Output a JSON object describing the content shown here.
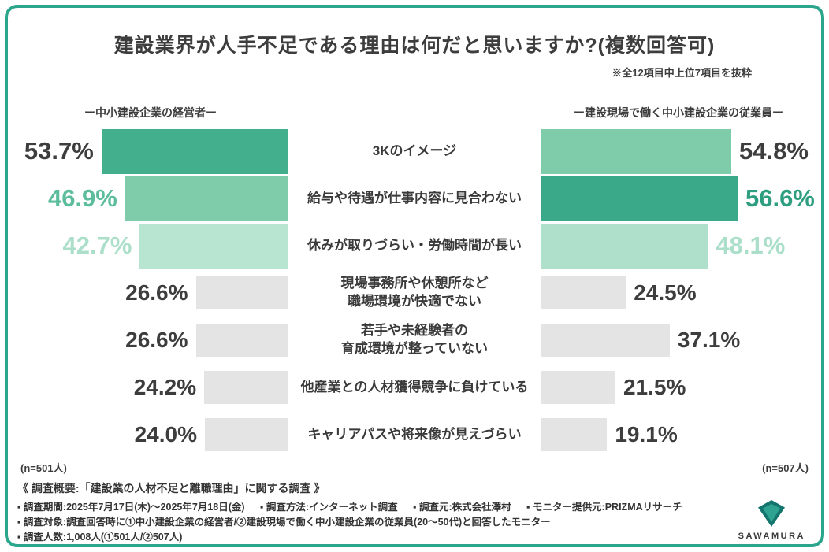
{
  "accent_colors": {
    "frame_border": "#2ba58b",
    "bar_dark_green": "#44af8d",
    "bar_medium_green": "#7fccab",
    "bar_light_green": "#b7e5d2",
    "bar_gray": "#e4e4e4"
  },
  "header": {
    "title": "建設業界が人手不足である理由は何だと思いますか?(複数回答可)",
    "note": "※全12項目中上位7項目を抜粋"
  },
  "group_headers": {
    "left": "ー中小建設企業の経営者ー",
    "right": "ー建設現場で働く中小建設企業の従業員ー"
  },
  "chart_data": {
    "type": "bar",
    "layout": "diverging horizontal bars; two mirrored groups around centered category labels; top 3 rows highlighted in greens, rest gray",
    "title": "建設業界が人手不足である理由は何だと思いますか?(複数回答可)",
    "note": "※全12項目中上位7項目を抜粋",
    "xlim": [
      0,
      60
    ],
    "categories": [
      "3Kのイメージ",
      "給与や待遇が仕事内容に見合わない",
      "休みが取りづらい・労働時間が長い",
      "現場事務所や休憩所など職場環境が快適でない",
      "若手や未経験者の育成環境が整っていない",
      "他産業との人材獲得競争に負けている",
      "キャリアパスや将来像が見えづらい"
    ],
    "series": [
      {
        "name": "中小建設企業の経営者",
        "n": 501,
        "values": [
          53.7,
          46.9,
          42.7,
          26.6,
          26.6,
          24.2,
          24.0
        ]
      },
      {
        "name": "建設現場で働く中小建設企業の従業員",
        "n": 507,
        "values": [
          54.8,
          56.6,
          48.1,
          24.5,
          37.1,
          21.5,
          19.1
        ]
      }
    ]
  },
  "rows": [
    {
      "category": "3Kのイメージ",
      "left_value": 53.7,
      "left_label": "53.7%",
      "left_color": "#44af8d",
      "left_label_color": "#3d3d3d",
      "right_value": 54.8,
      "right_label": "54.8%",
      "right_color": "#7fccab",
      "right_label_color": "#3d3d3d",
      "highlight": true
    },
    {
      "category": "給与や待遇が仕事内容に見合わない",
      "left_value": 46.9,
      "left_label": "46.9%",
      "left_color": "#7fccab",
      "left_label_color": "#5cbd9c",
      "right_value": 56.6,
      "right_label": "56.6%",
      "right_color": "#3aa98a",
      "right_label_color": "#2e9e80",
      "highlight": true
    },
    {
      "category": "休みが取りづらい・労働時間が長い",
      "left_value": 42.7,
      "left_label": "42.7%",
      "left_color": "#b7e5d2",
      "left_label_color": "#abdfc9",
      "right_value": 48.1,
      "right_label": "48.1%",
      "right_color": "#aee0cb",
      "right_label_color": "#abdfc9",
      "highlight": true
    },
    {
      "category": "現場事務所や休憩所など\n職場環境が快適でない",
      "left_value": 26.6,
      "left_label": "26.6%",
      "left_color": "#e4e4e4",
      "left_label_color": "#3d3d3d",
      "right_value": 24.5,
      "right_label": "24.5%",
      "right_color": "#e4e4e4",
      "right_label_color": "#3d3d3d",
      "highlight": false
    },
    {
      "category": "若手や未経験者の\n育成環境が整っていない",
      "left_value": 26.6,
      "left_label": "26.6%",
      "left_color": "#e4e4e4",
      "left_label_color": "#3d3d3d",
      "right_value": 37.1,
      "right_label": "37.1%",
      "right_color": "#e4e4e4",
      "right_label_color": "#3d3d3d",
      "highlight": false
    },
    {
      "category": "他産業との人材獲得競争に負けている",
      "left_value": 24.2,
      "left_label": "24.2%",
      "left_color": "#e4e4e4",
      "left_label_color": "#3d3d3d",
      "right_value": 21.5,
      "right_label": "21.5%",
      "right_color": "#e4e4e4",
      "right_label_color": "#3d3d3d",
      "highlight": false
    },
    {
      "category": "キャリアパスや将来像が見えづらい",
      "left_value": 24.0,
      "left_label": "24.0%",
      "left_color": "#e4e4e4",
      "left_label_color": "#3d3d3d",
      "right_value": 19.1,
      "right_label": "19.1%",
      "right_color": "#e4e4e4",
      "right_label_color": "#3d3d3d",
      "highlight": false
    }
  ],
  "n_labels": {
    "left": "(n=501人)",
    "right": "(n=507人)"
  },
  "footer": {
    "heading": "《 調査概要:「建設業の人材不足と離職理由」に関する調査 》",
    "line1_items": [
      "▪ 調査期間:2025年7月17日(木)〜2025年7月18日(金)",
      "▪ 調査方法:インターネット調査",
      "▪ 調査元:株式会社澤村",
      "▪ モニター提供元:PRIZMAリサーチ"
    ],
    "line2": "▪ 調査対象:調査回答時に①中小建設企業の経営者/②建設現場で働く中小建設企業の従業員(20〜50代)と回答したモニター",
    "line3": "▪ 調査人数:1,008人(①501人/②507人)"
  },
  "logo": {
    "text": "SAWAMURA"
  }
}
